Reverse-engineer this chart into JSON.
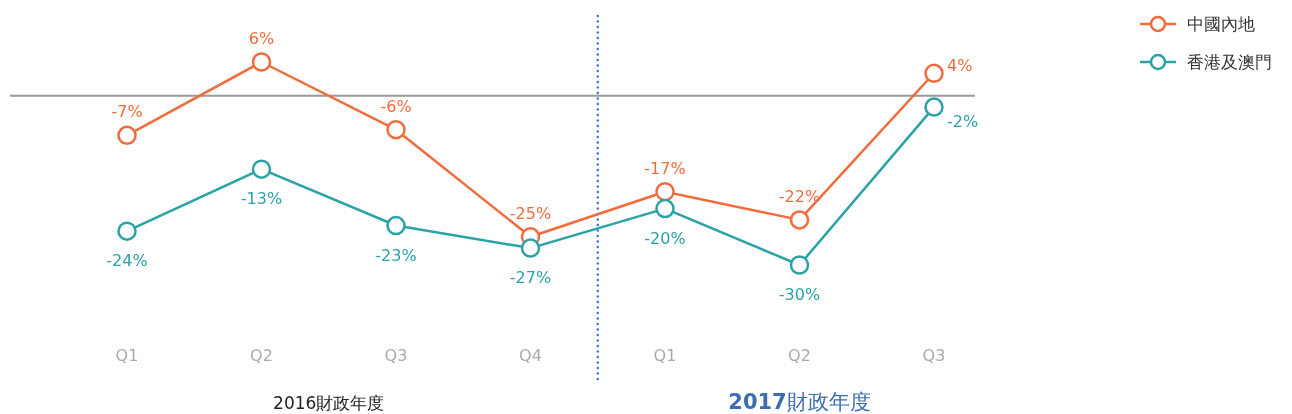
{
  "chart_data": {
    "type": "line",
    "categories": [
      "Q1",
      "Q2",
      "Q3",
      "Q4",
      "Q1",
      "Q2",
      "Q3"
    ],
    "series": [
      {
        "name": "中國內地",
        "color": "#f26b3a",
        "values": [
          -7,
          6,
          -6,
          -25,
          -17,
          -22,
          4
        ],
        "value_labels": [
          "-7%",
          "6%",
          "-6%",
          "-25%",
          "-17%",
          "-22%",
          "4%"
        ]
      },
      {
        "name": "香港及澳門",
        "color": "#2aa3a8",
        "values": [
          -24,
          -13,
          -23,
          -27,
          -20,
          -30,
          -2
        ],
        "value_labels": [
          "-24%",
          "-13%",
          "-23%",
          "-27%",
          "-20%",
          "-30%",
          "-2%"
        ]
      }
    ],
    "marker": "circle",
    "line_style": "solid",
    "legend": "top right",
    "annotations": [
      "2016財政年度",
      "**2017**財政年度"
    ]
  }
}
